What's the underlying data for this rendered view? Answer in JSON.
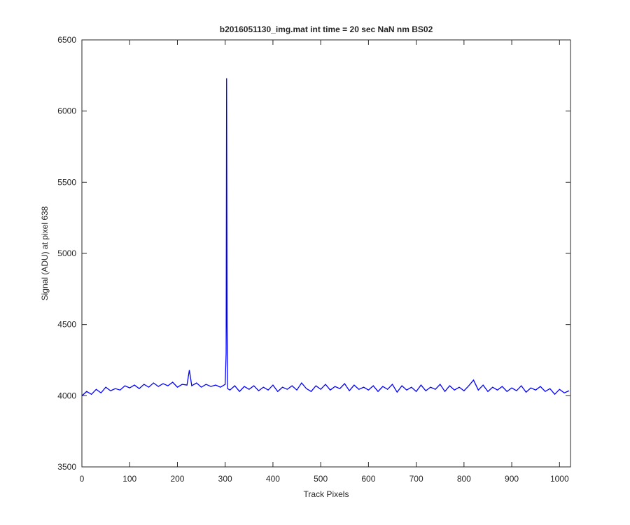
{
  "chart_data": {
    "type": "line",
    "title": "b2016051130_img.mat int time = 20 sec  NaN nm BS02",
    "x_label": "Track Pixels",
    "y_label": "Signal (ADU) at pixel 638",
    "x": [
      0,
      10,
      20,
      30,
      40,
      50,
      60,
      70,
      80,
      90,
      100,
      110,
      120,
      130,
      140,
      150,
      160,
      170,
      180,
      190,
      200,
      210,
      220,
      225,
      230,
      240,
      250,
      260,
      270,
      280,
      290,
      300,
      302,
      303,
      304,
      305,
      310,
      320,
      330,
      340,
      350,
      360,
      370,
      380,
      390,
      400,
      410,
      420,
      430,
      440,
      450,
      460,
      470,
      480,
      490,
      500,
      510,
      520,
      530,
      540,
      550,
      560,
      570,
      580,
      590,
      600,
      610,
      620,
      630,
      640,
      650,
      660,
      670,
      680,
      690,
      700,
      710,
      720,
      730,
      740,
      750,
      760,
      770,
      780,
      790,
      800,
      810,
      820,
      830,
      840,
      850,
      860,
      870,
      880,
      890,
      900,
      910,
      920,
      930,
      940,
      950,
      960,
      970,
      980,
      990,
      1000,
      1010,
      1020
    ],
    "series": [
      {
        "name": "signal",
        "color": "#0000ff",
        "values": [
          4000,
          4030,
          4010,
          4045,
          4020,
          4060,
          4035,
          4050,
          4040,
          4070,
          4055,
          4075,
          4050,
          4080,
          4060,
          4090,
          4065,
          4085,
          4070,
          4095,
          4060,
          4080,
          4075,
          4180,
          4070,
          4090,
          4060,
          4080,
          4065,
          4075,
          4060,
          4080,
          4300,
          6230,
          4500,
          4050,
          4040,
          4070,
          4030,
          4065,
          4045,
          4070,
          4035,
          4060,
          4040,
          4075,
          4030,
          4060,
          4045,
          4070,
          4040,
          4090,
          4050,
          4030,
          4070,
          4045,
          4080,
          4040,
          4065,
          4050,
          4085,
          4035,
          4075,
          4045,
          4060,
          4040,
          4070,
          4030,
          4065,
          4045,
          4080,
          4025,
          4070,
          4040,
          4060,
          4030,
          4075,
          4035,
          4060,
          4045,
          4080,
          4030,
          4070,
          4040,
          4060,
          4035,
          4070,
          4110,
          4040,
          4075,
          4030,
          4060,
          4040,
          4065,
          4030,
          4055,
          4035,
          4070,
          4025,
          4055,
          4040,
          4065,
          4030,
          4050,
          4010,
          4045,
          4020,
          4035
        ]
      }
    ],
    "xlim": [
      0,
      1023
    ],
    "ylim": [
      3500,
      6500
    ],
    "xticks": [
      0,
      100,
      200,
      300,
      400,
      500,
      600,
      700,
      800,
      900,
      1000
    ],
    "yticks": [
      3500,
      4000,
      4500,
      5000,
      5500,
      6000,
      6500
    ]
  }
}
